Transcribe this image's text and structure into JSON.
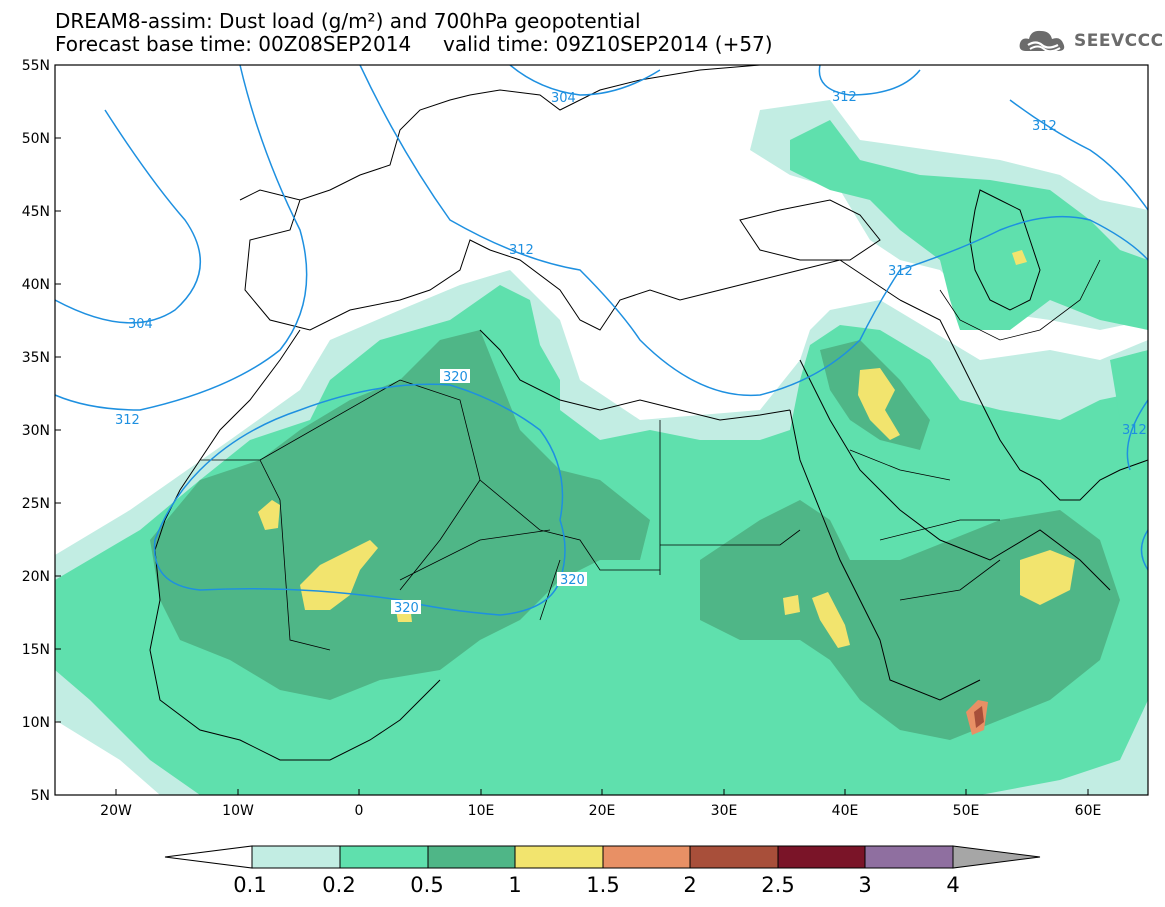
{
  "title": {
    "line1": "DREAM8-assim: Dust load (g/m²) and 700hPa geopotential",
    "line2": "Forecast base time: 00Z08SEP2014     valid time: 09Z10SEP2014 (+57)"
  },
  "logo": {
    "text": "SEEVCCC",
    "icon": "cloud-logo-icon"
  },
  "axes": {
    "lat_labels": [
      "55N",
      "50N",
      "45N",
      "40N",
      "35N",
      "30N",
      "25N",
      "20N",
      "15N",
      "10N",
      "5N"
    ],
    "lon_labels": [
      "20W",
      "10W",
      "0",
      "10E",
      "20E",
      "30E",
      "40E",
      "50E",
      "60E"
    ]
  },
  "contours": {
    "color": "#1e90e0",
    "labels": [
      "304",
      "312",
      "320",
      "304",
      "312",
      "312",
      "320",
      "320",
      "312",
      "312",
      "312"
    ]
  },
  "colorbar": {
    "labels": [
      "0.1",
      "0.2",
      "0.5",
      "1",
      "1.5",
      "2",
      "2.5",
      "3",
      "4"
    ],
    "colors": [
      "#c2ede3",
      "#5fe0ad",
      "#4fb687",
      "#f2e46e",
      "#e89065",
      "#a84f3a",
      "#7a1428",
      "#8f6fa0",
      "#a6a6a6"
    ]
  },
  "dust_colors": {
    "low": "#c2ede3",
    "mid": "#5fe0ad",
    "high": "#4fb687",
    "peak": "#f2e46e",
    "extreme": "#e89065",
    "extreme2": "#a84f3a"
  }
}
